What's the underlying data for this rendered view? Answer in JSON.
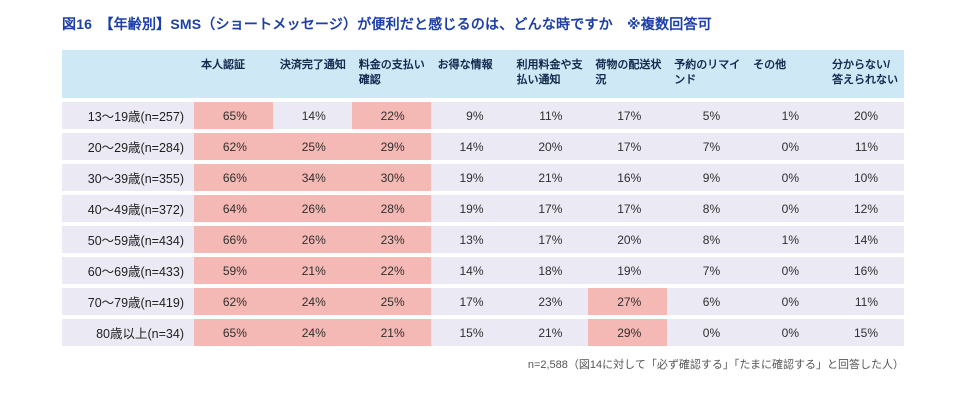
{
  "title": "図16　【年齢別】SMS（ショートメッセージ）が便利だと感じるのは、どんな時ですか　※複数回答可",
  "footnote": "n=2,588（図14に対して「必ず確認する」「たまに確認する」と回答した人）",
  "colors": {
    "title_text": "#1d3fa5",
    "header_bg": "#cfe8f6",
    "row_bg": "#ebe9f4",
    "highlight_bg": "#f5b9b5"
  },
  "chart_data": {
    "type": "table",
    "title": "図16 【年齢別】SMS（ショートメッセージ）が便利だと感じるのは、どんな時ですか ※複数回答可",
    "unit": "%",
    "columns": [
      "本人認証",
      "決済完了通知",
      "料金の支払い確認",
      "お得な情報",
      "利用料金や支払い通知",
      "荷物の配送状況",
      "予約のリマインド",
      "その他",
      "分からない/答えられない"
    ],
    "rows": [
      {
        "label": "13〜19歳(n=257)",
        "values": [
          65,
          14,
          22,
          9,
          11,
          17,
          5,
          1,
          20
        ],
        "highlight": [
          true,
          false,
          true,
          false,
          false,
          false,
          false,
          false,
          false
        ]
      },
      {
        "label": "20〜29歳(n=284)",
        "values": [
          62,
          25,
          29,
          14,
          20,
          17,
          7,
          0,
          11
        ],
        "highlight": [
          true,
          true,
          true,
          false,
          false,
          false,
          false,
          false,
          false
        ]
      },
      {
        "label": "30〜39歳(n=355)",
        "values": [
          66,
          34,
          30,
          19,
          21,
          16,
          9,
          0,
          10
        ],
        "highlight": [
          true,
          true,
          true,
          false,
          false,
          false,
          false,
          false,
          false
        ]
      },
      {
        "label": "40〜49歳(n=372)",
        "values": [
          64,
          26,
          28,
          19,
          17,
          17,
          8,
          0,
          12
        ],
        "highlight": [
          true,
          true,
          true,
          false,
          false,
          false,
          false,
          false,
          false
        ]
      },
      {
        "label": "50〜59歳(n=434)",
        "values": [
          66,
          26,
          23,
          13,
          17,
          20,
          8,
          1,
          14
        ],
        "highlight": [
          true,
          true,
          true,
          false,
          false,
          false,
          false,
          false,
          false
        ]
      },
      {
        "label": "60〜69歳(n=433)",
        "values": [
          59,
          21,
          22,
          14,
          18,
          19,
          7,
          0,
          16
        ],
        "highlight": [
          true,
          true,
          true,
          false,
          false,
          false,
          false,
          false,
          false
        ]
      },
      {
        "label": "70〜79歳(n=419)",
        "values": [
          62,
          24,
          25,
          17,
          23,
          27,
          6,
          0,
          11
        ],
        "highlight": [
          true,
          true,
          true,
          false,
          false,
          true,
          false,
          false,
          false
        ]
      },
      {
        "label": "80歳以上(n=34)",
        "values": [
          65,
          24,
          21,
          15,
          21,
          29,
          0,
          0,
          15
        ],
        "highlight": [
          true,
          true,
          true,
          false,
          false,
          true,
          false,
          false,
          false
        ]
      }
    ]
  }
}
